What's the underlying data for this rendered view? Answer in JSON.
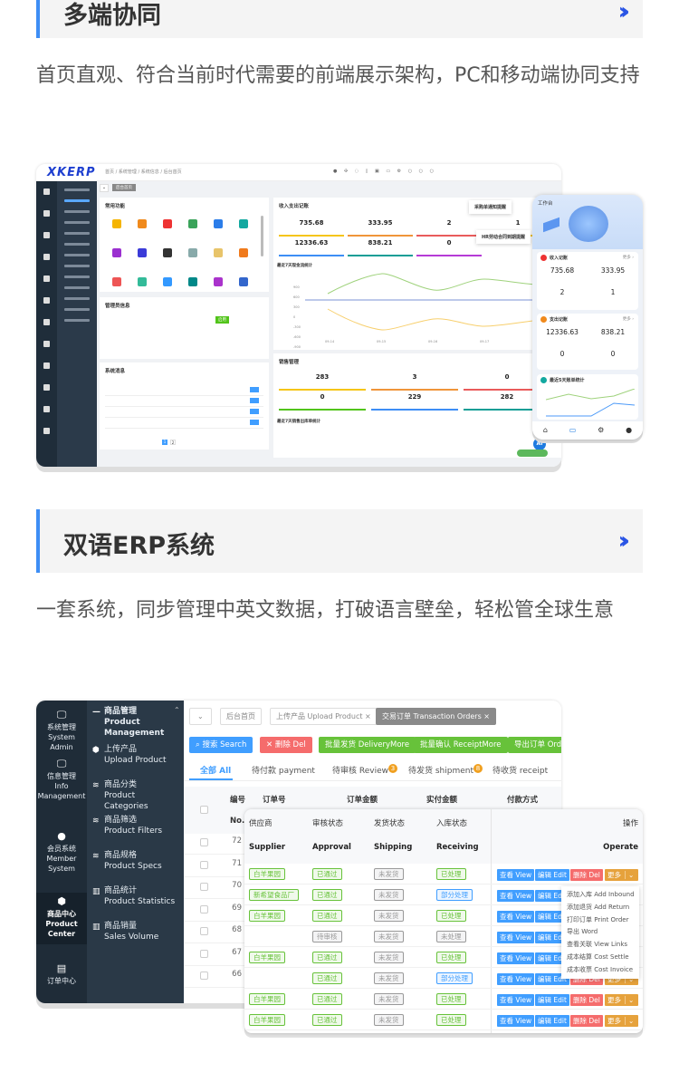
{
  "section1": {
    "title": "多端协同",
    "description": "首页直观、符合当前时代需要的前端展示架构，PC和移动端协同支持",
    "desktop": {
      "logo": "XKERP",
      "breadcrumb": "首页 / 系统管理 / 系统信息 / 后台首页",
      "active_tab": "后台首页",
      "panels": {
        "common": "常用功能",
        "admin": "管理员信息",
        "messages": "系统消息",
        "finance": "收入支出记账",
        "finance_chart": "最近7天现金流统计",
        "sales": "销售管理",
        "sales_chart": "最近7天销售出库单统计"
      },
      "admin_status": "启用",
      "finance_stats": [
        "735.68",
        "333.95",
        "2",
        "1",
        "12336.63",
        "838.21",
        "0"
      ],
      "sales_stats": [
        "283",
        "3",
        "0",
        "0",
        "229",
        "282"
      ],
      "finance_x": [
        "09-14",
        "09-15",
        "09-16",
        "09-17"
      ],
      "finance_y": [
        "900",
        "600",
        "300",
        "0",
        "-300",
        "-600",
        "-900"
      ],
      "notifications": [
        "采购单通知提醒",
        "HR劳动合同到期提醒"
      ],
      "pager": [
        "1",
        "2"
      ],
      "ai": "AI"
    },
    "mobile": {
      "title": "工作台",
      "income": {
        "title": "收入记账",
        "more": "更多 ›",
        "values": [
          "735.68",
          "333.95",
          "2",
          "1"
        ]
      },
      "expense": {
        "title": "支出记账",
        "more": "更多 ›",
        "values": [
          "12336.63",
          "838.21",
          "0",
          "0"
        ]
      },
      "chart_title": "最近5天账单统计"
    }
  },
  "section2": {
    "title": "双语ERP系统",
    "description": "一套系统，同步管理中英文数据，打破语言壁垒，轻松管全球生意",
    "app": {
      "primary_nav": [
        {
          "cn": "系统管理",
          "en": "System Admin",
          "icon": "monitor"
        },
        {
          "cn": "信息管理",
          "en": "Info Management",
          "icon": "monitor"
        },
        {
          "cn": "会员系统",
          "en": "Member System",
          "icon": "user"
        },
        {
          "cn": "商品中心",
          "en": "Product Center",
          "icon": "cube",
          "active": true
        },
        {
          "cn": "订单中心",
          "en": "",
          "icon": "clipboard"
        }
      ],
      "secondary_nav_header": {
        "cn": "商品管理",
        "en": "Product Management"
      },
      "secondary_nav": [
        {
          "cn": "上传产品",
          "en": "Upload Product",
          "icon": "cube"
        },
        {
          "cn": "商品分类",
          "en": "Product Categories",
          "icon": "layers"
        },
        {
          "cn": "商品筛选",
          "en": "Product Filters",
          "icon": "layers"
        },
        {
          "cn": "商品规格",
          "en": "Product Specs",
          "icon": "layers"
        },
        {
          "cn": "商品统计",
          "en": "Product Statistics",
          "icon": "bar-chart"
        },
        {
          "cn": "商品销量",
          "en": "Sales Volume",
          "icon": "bar-chart"
        }
      ],
      "tags": [
        "后台首页",
        "上传产品 Upload Product ×",
        "交易订单 Transaction Orders ×"
      ],
      "buttons": [
        {
          "label": "⌕ 搜索 Search",
          "color": "#409eff"
        },
        {
          "label": "✕ 删除 Del",
          "color": "#f56c6c"
        },
        {
          "label": "批量发货 DeliveryMore",
          "color": "#67c23a"
        },
        {
          "label": "批量确认 ReceiptMore",
          "color": "#67c23a"
        },
        {
          "label": "导出订单 Order",
          "color": "#67c23a"
        }
      ],
      "order_tabs": [
        {
          "label": "全部 All",
          "active": true
        },
        {
          "label": "待付款 payment"
        },
        {
          "label": "待审核 Review",
          "badge": "3"
        },
        {
          "label": "待发货 shipment",
          "badge": "8"
        },
        {
          "label": "待收货 receipt"
        }
      ],
      "columns": [
        "编号",
        "订单号",
        "订单金额",
        "实付金额",
        "付款方式"
      ],
      "no_label": "No.",
      "row_numbers": [
        "72",
        "71",
        "70",
        "69",
        "68",
        "67",
        "66"
      ]
    },
    "overlay": {
      "columns_cn": [
        "供应商",
        "审核状态",
        "发货状态",
        "入库状态",
        "操作"
      ],
      "columns_en": [
        "Supplier",
        "Approval",
        "Shipping",
        "Receiving",
        "Operate"
      ],
      "rows": [
        [
          "白羊果园",
          "已通过",
          "未发货",
          "已处理"
        ],
        [
          "新希望食品厂",
          "已通过",
          "未发货",
          "部分处理"
        ],
        [
          "白羊果园",
          "已通过",
          "未发货",
          "已处理"
        ],
        [
          "",
          "待审核",
          "未发货",
          "未处理"
        ],
        [
          "白羊果园",
          "已通过",
          "未发货",
          "已处理"
        ],
        [
          "",
          "已通过",
          "未发货",
          "部分处理"
        ],
        [
          "白羊果园",
          "已通过",
          "未发货",
          "已处理"
        ],
        [
          "白羊果园",
          "已通过",
          "未发货",
          "已处理"
        ]
      ],
      "actions": {
        "view": "查看 View",
        "edit": "编辑 Edit",
        "del": "删除 Del",
        "more": "更多"
      },
      "more_menu": [
        "添加入库 Add Inbound",
        "添加退货 Add Return",
        "打印订单 Print Order",
        "导出 Word",
        "查看关联 View Links",
        "成本结算 Cost Settle",
        "成本收票 Cost Invoice"
      ]
    }
  }
}
